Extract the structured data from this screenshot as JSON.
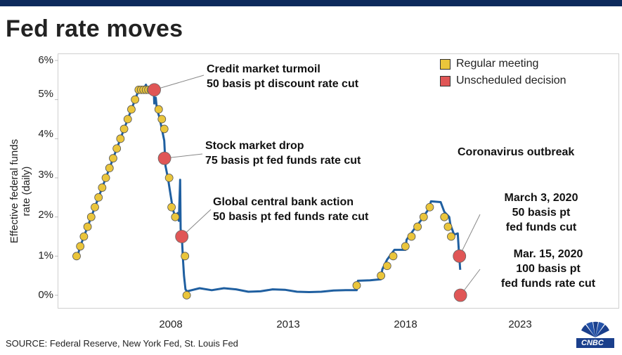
{
  "title": "Fed rate moves",
  "source": "SOURCE: Federal Reserve, New York Fed, St. Louis Fed",
  "logo": "CNBC",
  "chart_data": {
    "type": "line",
    "ylabel": "Effective federal funds rate (daily)",
    "xlabel": "",
    "ylim": [
      0,
      6
    ],
    "xlim": [
      2003.7,
      2026.7
    ],
    "y_ticks": [
      "0%",
      "1%",
      "2%",
      "3%",
      "4%",
      "5%",
      "6%"
    ],
    "x_ticks": [
      "2008",
      "2013",
      "2018",
      "2023"
    ],
    "grid": false,
    "legend_position": "top-right",
    "legend": [
      {
        "label": "Regular meeting",
        "color": "#eac53b"
      },
      {
        "label": "Unscheduled decision",
        "color": "#e05656"
      }
    ],
    "series": [
      {
        "color": "#1f5fa0",
        "points": [
          [
            2004.4,
            1.0
          ],
          [
            2004.5,
            1.03
          ],
          [
            2004.6,
            1.25
          ],
          [
            2004.75,
            1.5
          ],
          [
            2004.9,
            1.75
          ],
          [
            2005.05,
            2.0
          ],
          [
            2005.2,
            2.25
          ],
          [
            2005.35,
            2.5
          ],
          [
            2005.5,
            2.75
          ],
          [
            2005.65,
            3.0
          ],
          [
            2005.8,
            3.25
          ],
          [
            2005.95,
            3.5
          ],
          [
            2006.1,
            3.75
          ],
          [
            2006.25,
            4.0
          ],
          [
            2006.4,
            4.25
          ],
          [
            2006.55,
            4.5
          ],
          [
            2006.7,
            4.75
          ],
          [
            2006.85,
            5.0
          ],
          [
            2007.0,
            5.25
          ],
          [
            2007.2,
            5.27
          ],
          [
            2007.3,
            5.38
          ],
          [
            2007.4,
            5.2
          ],
          [
            2007.5,
            5.3
          ],
          [
            2007.62,
            5.25
          ],
          [
            2007.64,
            4.9
          ],
          [
            2007.7,
            5.05
          ],
          [
            2007.75,
            4.75
          ],
          [
            2007.85,
            4.55
          ],
          [
            2007.95,
            4.25
          ],
          [
            2008.05,
            3.95
          ],
          [
            2008.1,
            3.3
          ],
          [
            2008.2,
            3.0
          ],
          [
            2008.3,
            2.6
          ],
          [
            2008.4,
            2.2
          ],
          [
            2008.5,
            2.0
          ],
          [
            2008.6,
            2.1
          ],
          [
            2008.65,
            1.9
          ],
          [
            2008.7,
            2.95
          ],
          [
            2008.72,
            1.7
          ],
          [
            2008.78,
            1.4
          ],
          [
            2008.82,
            0.9
          ],
          [
            2008.86,
            0.5
          ],
          [
            2008.92,
            0.15
          ],
          [
            2008.98,
            0.1
          ],
          [
            2009.5,
            0.18
          ],
          [
            2010.0,
            0.13
          ],
          [
            2010.5,
            0.18
          ],
          [
            2011.0,
            0.15
          ],
          [
            2011.5,
            0.09
          ],
          [
            2012.0,
            0.1
          ],
          [
            2012.5,
            0.15
          ],
          [
            2013.0,
            0.14
          ],
          [
            2013.5,
            0.09
          ],
          [
            2014.0,
            0.08
          ],
          [
            2014.5,
            0.09
          ],
          [
            2015.0,
            0.12
          ],
          [
            2015.5,
            0.13
          ],
          [
            2015.95,
            0.13
          ],
          [
            2016.0,
            0.37
          ],
          [
            2016.5,
            0.38
          ],
          [
            2016.95,
            0.41
          ],
          [
            2017.0,
            0.66
          ],
          [
            2017.2,
            0.91
          ],
          [
            2017.5,
            1.16
          ],
          [
            2017.95,
            1.16
          ],
          [
            2018.0,
            1.42
          ],
          [
            2018.3,
            1.68
          ],
          [
            2018.6,
            1.92
          ],
          [
            2018.9,
            2.2
          ],
          [
            2019.0,
            2.4
          ],
          [
            2019.4,
            2.38
          ],
          [
            2019.55,
            2.13
          ],
          [
            2019.75,
            2.0
          ],
          [
            2019.8,
            1.8
          ],
          [
            2019.95,
            1.55
          ],
          [
            2020.1,
            1.58
          ],
          [
            2020.15,
            1.1
          ],
          [
            2020.2,
            0.65
          ]
        ]
      }
    ],
    "regular_meetings": [
      [
        2004.45,
        1.0
      ],
      [
        2004.6,
        1.25
      ],
      [
        2004.75,
        1.5
      ],
      [
        2004.9,
        1.75
      ],
      [
        2005.05,
        2.0
      ],
      [
        2005.2,
        2.25
      ],
      [
        2005.35,
        2.5
      ],
      [
        2005.5,
        2.75
      ],
      [
        2005.65,
        3.0
      ],
      [
        2005.8,
        3.25
      ],
      [
        2005.95,
        3.5
      ],
      [
        2006.1,
        3.75
      ],
      [
        2006.25,
        4.0
      ],
      [
        2006.4,
        4.25
      ],
      [
        2006.55,
        4.5
      ],
      [
        2006.7,
        4.75
      ],
      [
        2006.85,
        5.0
      ],
      [
        2007.0,
        5.25
      ],
      [
        2007.1,
        5.25
      ],
      [
        2007.2,
        5.25
      ],
      [
        2007.3,
        5.25
      ],
      [
        2007.4,
        5.25
      ],
      [
        2007.5,
        5.25
      ],
      [
        2007.6,
        5.25
      ],
      [
        2007.7,
        5.25
      ],
      [
        2007.82,
        4.75
      ],
      [
        2007.95,
        4.5
      ],
      [
        2008.05,
        4.25
      ],
      [
        2008.25,
        3.0
      ],
      [
        2008.35,
        2.25
      ],
      [
        2008.5,
        2.0
      ],
      [
        2008.8,
        1.5
      ],
      [
        2008.9,
        1.0
      ],
      [
        2008.97,
        0.0
      ],
      [
        2015.95,
        0.25
      ],
      [
        2016.95,
        0.5
      ],
      [
        2017.2,
        0.75
      ],
      [
        2017.45,
        1.0
      ],
      [
        2017.95,
        1.25
      ],
      [
        2018.2,
        1.5
      ],
      [
        2018.45,
        1.75
      ],
      [
        2018.7,
        2.0
      ],
      [
        2018.95,
        2.25
      ],
      [
        2019.55,
        2.0
      ],
      [
        2019.7,
        1.75
      ],
      [
        2019.83,
        1.5
      ]
    ],
    "unscheduled_decisions": [
      [
        2007.64,
        5.25
      ],
      [
        2008.06,
        3.5
      ],
      [
        2008.77,
        1.5
      ],
      [
        2020.17,
        1.0
      ],
      [
        2020.21,
        0.0
      ]
    ]
  },
  "annotations": [
    {
      "lines": [
        "Credit market turmoil",
        "50 basis pt discount rate cut"
      ]
    },
    {
      "lines": [
        "Stock market drop",
        "75 basis pt fed funds rate cut"
      ]
    },
    {
      "lines": [
        "Global central bank action",
        "50 basis pt fed funds rate cut"
      ]
    },
    {
      "lines": [
        "Coronavirus outbreak"
      ]
    },
    {
      "lines": [
        "March 3, 2020",
        "50 basis pt",
        "fed funds cut"
      ]
    },
    {
      "lines": [
        "Mar. 15, 2020",
        "100 basis pt",
        "fed funds rate cut"
      ]
    }
  ]
}
